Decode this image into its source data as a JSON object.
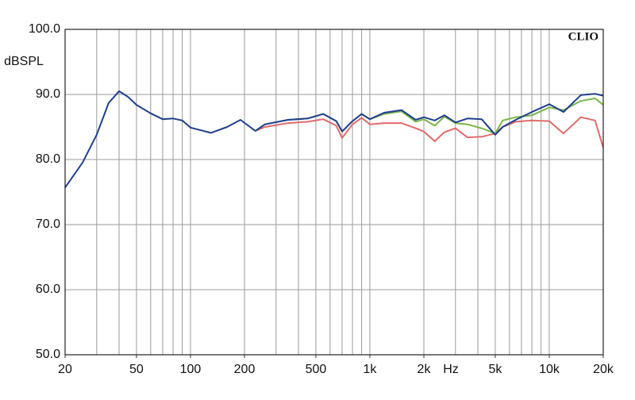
{
  "chart_data": {
    "type": "line",
    "y_label": "dBSPL",
    "x_label": "Hz",
    "brand": "CLIO",
    "log_x": true,
    "x": [
      20,
      25,
      30,
      35,
      40,
      45,
      50,
      60,
      70,
      80,
      90,
      100,
      130,
      160,
      190,
      230,
      260,
      350,
      450,
      550,
      650,
      700,
      800,
      900,
      1000,
      1200,
      1500,
      1800,
      2000,
      2300,
      2600,
      3000,
      3500,
      4200,
      5000,
      5500,
      6500,
      8000,
      10000,
      12000,
      15000,
      18000,
      20000
    ],
    "series": [
      {
        "color": "#e06b6b",
        "values": [
          null,
          null,
          null,
          null,
          null,
          null,
          null,
          null,
          null,
          null,
          null,
          null,
          null,
          null,
          null,
          84.4,
          85.0,
          85.6,
          85.8,
          86.2,
          85.2,
          83.3,
          85.4,
          86.4,
          85.4,
          85.6,
          85.6,
          84.8,
          84.3,
          82.8,
          84.2,
          84.8,
          83.4,
          83.5,
          84.0,
          85.0,
          85.8,
          86.0,
          85.9,
          84.0,
          86.5,
          86.0,
          81.8
        ]
      },
      {
        "color": "#7ab648",
        "values": [
          null,
          null,
          null,
          null,
          null,
          null,
          null,
          null,
          null,
          null,
          null,
          null,
          null,
          null,
          null,
          84.4,
          85.4,
          86.1,
          86.3,
          87.0,
          85.9,
          84.3,
          85.9,
          87.0,
          86.2,
          87.0,
          87.4,
          85.8,
          86.2,
          85.2,
          86.6,
          85.6,
          85.4,
          84.8,
          84.0,
          86.0,
          86.5,
          86.8,
          88.0,
          87.6,
          89.0,
          89.4,
          88.4
        ]
      },
      {
        "color": "#1f3f8f",
        "values": [
          75.7,
          79.5,
          83.8,
          88.7,
          90.5,
          89.6,
          88.4,
          87.1,
          86.2,
          86.3,
          86.0,
          84.9,
          84.1,
          85.0,
          86.1,
          84.4,
          85.4,
          86.1,
          86.3,
          87.0,
          85.9,
          84.3,
          85.9,
          87.0,
          86.2,
          87.2,
          87.6,
          86.1,
          86.5,
          86.0,
          86.8,
          85.7,
          86.3,
          86.2,
          83.8,
          85.0,
          86.1,
          87.3,
          88.5,
          87.3,
          89.9,
          90.1,
          89.8
        ]
      }
    ],
    "xlim": [
      20,
      20000
    ],
    "xticks": [
      20,
      50,
      100,
      200,
      500,
      {
        "value": 1000,
        "label": "1k"
      },
      {
        "value": 2000,
        "label": "2k"
      },
      {
        "value": 5000,
        "label": "5k"
      },
      {
        "value": 10000,
        "label": "10k"
      },
      {
        "value": 20000,
        "label": "20k"
      }
    ],
    "xgrid": [
      30,
      40,
      50,
      60,
      70,
      80,
      90,
      100,
      200,
      300,
      400,
      500,
      600,
      700,
      800,
      900,
      1000,
      2000,
      3000,
      4000,
      5000,
      6000,
      7000,
      8000,
      9000,
      10000
    ],
    "ylim": [
      50,
      100
    ],
    "yticks": [
      {
        "value": 50,
        "label": "50.0"
      },
      {
        "value": 60,
        "label": "60.0"
      },
      {
        "value": 70,
        "label": "70.0"
      },
      {
        "value": 80,
        "label": "80.0"
      },
      {
        "value": 90,
        "label": "90.0"
      },
      {
        "value": 100,
        "label": "100.0"
      }
    ],
    "grid": true
  }
}
